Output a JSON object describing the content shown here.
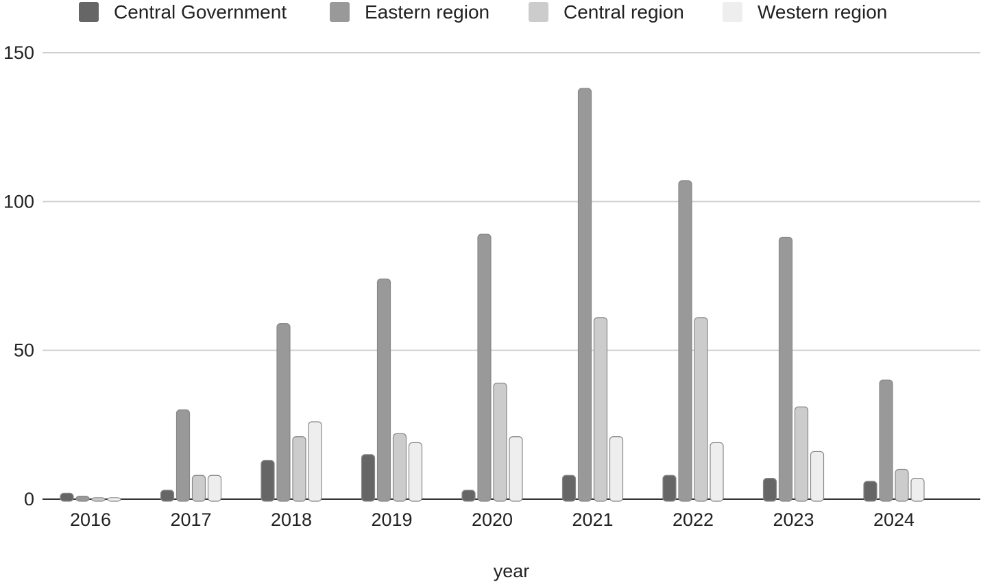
{
  "chart_data": {
    "type": "bar",
    "title": "",
    "xlabel": "year",
    "ylabel": "",
    "categories": [
      "2016",
      "2017",
      "2018",
      "2019",
      "2020",
      "2021",
      "2022",
      "2023",
      "2024"
    ],
    "series": [
      {
        "name": "Central Government",
        "color": "#666666",
        "values": [
          2,
          3,
          13,
          15,
          3,
          8,
          8,
          7,
          6
        ]
      },
      {
        "name": "Eastern region",
        "color": "#999999",
        "values": [
          1,
          30,
          59,
          74,
          89,
          138,
          107,
          88,
          40
        ]
      },
      {
        "name": "Central region",
        "color": "#cccccc",
        "values": [
          0.5,
          8,
          21,
          22,
          39,
          61,
          61,
          31,
          10
        ]
      },
      {
        "name": "Western region",
        "color": "#eeeeee",
        "values": [
          0.5,
          8,
          26,
          19,
          21,
          21,
          19,
          16,
          7
        ]
      }
    ],
    "ylim": [
      0,
      150
    ],
    "yticks": [
      "0",
      "50",
      "100",
      "150"
    ],
    "grid": true,
    "legend_position": "top"
  }
}
